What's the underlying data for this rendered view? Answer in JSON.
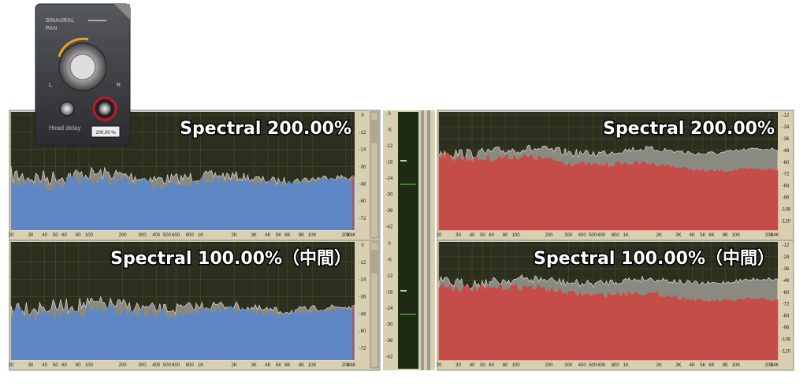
{
  "plugin": {
    "title_line1": "BINAURAL",
    "title_line2": "PAN",
    "left": "L",
    "right": "R",
    "head_delay": "Head delay",
    "value": "200.00 %"
  },
  "panels": [
    {
      "title": "Spectral 200.00%"
    },
    {
      "title": "Spectral 200.00%"
    },
    {
      "title": "Spectral 100.00%（中間）"
    },
    {
      "title": "Spectral 100.00%（中間）"
    }
  ],
  "freq_labels": [
    "20",
    "30",
    "40",
    "50",
    "60",
    "80",
    "100",
    "200",
    "300",
    "400",
    "500",
    "600",
    "800",
    "1K",
    "2K",
    "3K",
    "4K",
    "5K",
    "6K",
    "8K",
    "10K",
    "20K",
    "24K"
  ],
  "left_scale": [
    "0",
    "-12",
    "-24",
    "-36",
    "-48",
    "-60",
    "-72"
  ],
  "right_scale": [
    "-12",
    "-24",
    "-36",
    "-48",
    "-60",
    "-72",
    "-84",
    "-96",
    "-108",
    "-120"
  ],
  "meter_scale": [
    "0",
    "-6",
    "-12",
    "-18",
    "-24",
    "-30",
    "-36",
    "-42"
  ]
}
